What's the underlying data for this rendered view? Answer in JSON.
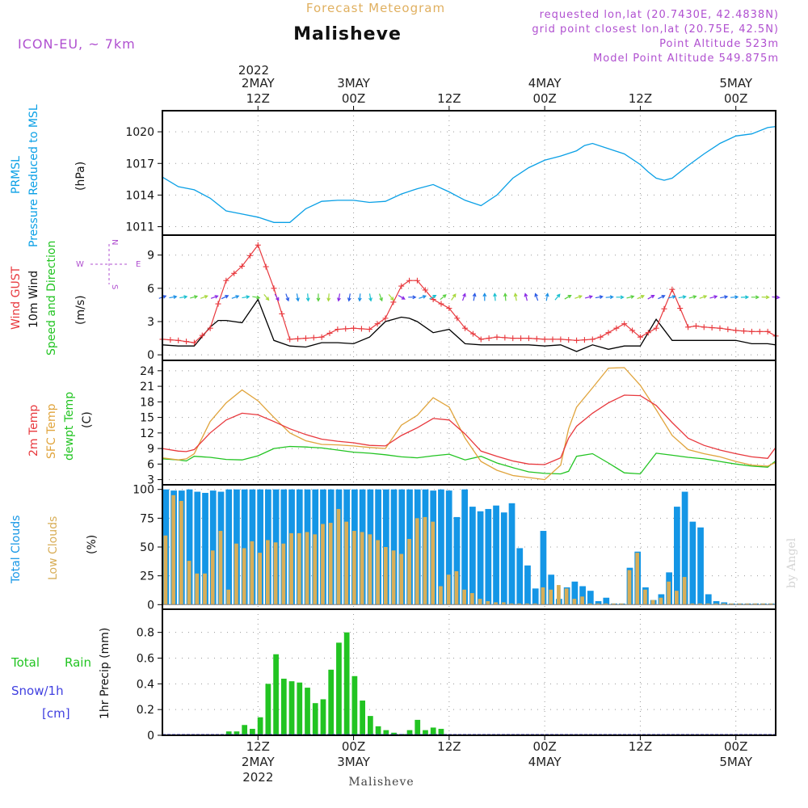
{
  "header": {
    "product": "Forecast Meteogram",
    "location": "Malisheve",
    "model": "ICON-EU, ~ 7km",
    "info_lines": [
      "requested lon,lat (20.7430E, 42.4838N)",
      "grid point closest lon,lat (20.75E, 42.5N)",
      "Point Altitude 523m",
      "Model Point Altitude 549.875m"
    ]
  },
  "footer": {
    "location": "Malisheve",
    "watermark": "by Angel"
  },
  "time_axis": {
    "top_year": "2022",
    "ticks": [
      {
        "hour": 12,
        "top": "2MAY 12Z",
        "bottom": "12Z 2MAY 2022"
      },
      {
        "hour": 24,
        "top": "3MAY 00Z",
        "bottom": "00Z 3MAY"
      },
      {
        "hour": 36,
        "top": "12Z",
        "bottom": "12Z"
      },
      {
        "hour": 48,
        "top": "4MAY 00Z",
        "bottom": "00Z 4MAY"
      },
      {
        "hour": 60,
        "top": "12Z",
        "bottom": "12Z"
      },
      {
        "hour": 72,
        "top": "5MAY 00Z",
        "bottom": "00Z 5MAY"
      }
    ]
  },
  "colors": {
    "pressure": "#0aa0e6",
    "gust": "#e8383d",
    "wind": "#000000",
    "temp2m": "#e8383d",
    "sfc": "#e0a43c",
    "dew": "#22c422",
    "total_cloud": "#1496e6",
    "low_cloud": "#d8ae58",
    "rain": "#22c422",
    "snow": "#4040e0",
    "purple": "#b050d0"
  },
  "panels": {
    "pressure": {
      "labels": [
        "PRMSL",
        "Pressure Reduced to MSL",
        "(hPa)"
      ]
    },
    "wind": {
      "labels": [
        "Wind GUST",
        "10m Wind",
        "Speed and Direction",
        "(m/s)"
      ],
      "compass": {
        "n": "N",
        "s": "S",
        "w": "W",
        "e": "E"
      }
    },
    "temp": {
      "labels": [
        "2m Temp",
        "SFC Temp",
        "dewpt Temp",
        "(C)"
      ]
    },
    "cloud": {
      "labels": [
        "Total Clouds",
        "Low Clouds",
        "(%)"
      ]
    },
    "precip": {
      "labels": [
        "Total",
        "Rain",
        "Snow/1h",
        "[cm]",
        "1hr Precip (mm)"
      ]
    }
  },
  "chart_data": [
    {
      "type": "line",
      "title": "PRMSL",
      "ylabel": "Pressure Reduced to MSL (hPa)",
      "ylim": [
        1010.2,
        1022.0
      ],
      "yticks": [
        1011,
        1014,
        1017,
        1020
      ],
      "x_unit": "hours from 2022-05-02 00Z",
      "x": [
        0,
        2,
        4,
        6,
        8,
        10,
        12,
        14,
        16,
        18,
        20,
        22,
        24,
        26,
        28,
        30,
        32,
        34,
        36,
        38,
        40,
        42,
        44,
        46,
        48,
        50,
        52,
        53,
        54,
        56,
        58,
        60,
        61,
        62,
        63,
        64,
        66,
        68,
        70,
        72,
        74,
        76,
        77
      ],
      "series": [
        {
          "name": "PRMSL",
          "values": [
            1015.7,
            1014.8,
            1014.5,
            1013.7,
            1012.5,
            1012.2,
            1011.9,
            1011.4,
            1011.4,
            1012.7,
            1013.4,
            1013.5,
            1013.5,
            1013.3,
            1013.4,
            1014.1,
            1014.6,
            1015.0,
            1014.3,
            1013.5,
            1013.0,
            1014.0,
            1015.6,
            1016.6,
            1017.3,
            1017.7,
            1018.2,
            1018.7,
            1018.9,
            1018.4,
            1017.9,
            1016.9,
            1016.2,
            1015.6,
            1015.4,
            1015.6,
            1016.8,
            1017.9,
            1018.9,
            1019.6,
            1019.8,
            1020.4,
            1020.5
          ]
        }
      ]
    },
    {
      "type": "line",
      "title": "Wind",
      "ylabel": "(m/s)",
      "ylim": [
        -0.5,
        10.8
      ],
      "yticks": [
        0,
        3,
        6,
        9
      ],
      "x": [
        0,
        2,
        4,
        6,
        7,
        8,
        10,
        12,
        14,
        16,
        18,
        20,
        22,
        24,
        26,
        28,
        30,
        31,
        32,
        34,
        36,
        38,
        40,
        42,
        44,
        46,
        48,
        50,
        52,
        54,
        55,
        56,
        58,
        60,
        62,
        64,
        66,
        67,
        68,
        70,
        72,
        74,
        76,
        77
      ],
      "series": [
        {
          "name": "Wind GUST",
          "values": [
            1.4,
            1.3,
            1.1,
            2.4,
            4.6,
            6.7,
            8.0,
            9.9,
            6.0,
            1.4,
            1.5,
            1.6,
            2.3,
            2.4,
            2.3,
            3.3,
            6.2,
            6.7,
            6.7,
            5.0,
            4.2,
            2.4,
            1.4,
            1.6,
            1.5,
            1.5,
            1.4,
            1.4,
            1.3,
            1.4,
            1.6,
            2.0,
            2.8,
            1.6,
            2.4,
            5.9,
            2.5,
            2.6,
            2.5,
            2.4,
            2.2,
            2.1,
            2.1,
            1.7
          ]
        },
        {
          "name": "10m Wind",
          "values": [
            0.9,
            0.8,
            0.8,
            2.5,
            3.1,
            3.1,
            2.9,
            5.0,
            1.3,
            0.8,
            0.7,
            1.1,
            1.1,
            1.0,
            1.6,
            3.0,
            3.4,
            3.3,
            3.0,
            2.0,
            2.3,
            1.0,
            0.9,
            0.9,
            0.9,
            0.9,
            0.8,
            0.9,
            0.3,
            0.9,
            0.7,
            0.5,
            0.8,
            0.8,
            3.2,
            1.3,
            1.3,
            1.3,
            1.3,
            1.3,
            1.3,
            1.0,
            1.0,
            0.9
          ]
        }
      ],
      "wind_barbs": {
        "level": 5.2,
        "dirs_deg": [
          250,
          260,
          260,
          255,
          250,
          250,
          245,
          250,
          260,
          280,
          320,
          330,
          340,
          350,
          355,
          0,
          5,
          10,
          10,
          5,
          350,
          340,
          320,
          300,
          270,
          250,
          240,
          230,
          215,
          200,
          190,
          180,
          175,
          175,
          170,
          165,
          160,
          190,
          220,
          240,
          250,
          255,
          260,
          265,
          270,
          255,
          245,
          240,
          245,
          255,
          260,
          255,
          250,
          255,
          260,
          265,
          268,
          270,
          272,
          275
        ]
      }
    },
    {
      "type": "line",
      "title": "Temperature",
      "ylabel": "(C)",
      "ylim": [
        2.0,
        26.0
      ],
      "yticks": [
        3,
        6,
        9,
        12,
        15,
        18,
        21,
        24
      ],
      "x": [
        0,
        2,
        3,
        4,
        6,
        8,
        10,
        12,
        14,
        16,
        18,
        20,
        22,
        24,
        26,
        28,
        30,
        32,
        34,
        36,
        38,
        40,
        42,
        44,
        46,
        48,
        50,
        51,
        52,
        54,
        56,
        58,
        60,
        62,
        64,
        66,
        68,
        70,
        72,
        74,
        76,
        77
      ],
      "series": [
        {
          "name": "2m Temp",
          "values": [
            9.0,
            8.5,
            8.4,
            8.8,
            12.0,
            14.5,
            15.8,
            15.5,
            14.2,
            12.8,
            11.7,
            10.8,
            10.4,
            10.1,
            9.6,
            9.5,
            11.5,
            13.0,
            14.8,
            14.5,
            11.8,
            8.5,
            7.5,
            6.6,
            6.0,
            5.9,
            7.2,
            11.0,
            13.3,
            15.8,
            17.8,
            19.3,
            19.2,
            17.3,
            14.0,
            11.0,
            9.6,
            8.7,
            8.0,
            7.4,
            7.1,
            9.2
          ]
        },
        {
          "name": "SFC Temp",
          "values": [
            7.2,
            6.8,
            7.0,
            8.0,
            14.2,
            17.8,
            20.3,
            18.2,
            15.0,
            12.0,
            10.5,
            9.8,
            9.7,
            9.5,
            9.2,
            9.0,
            13.5,
            15.4,
            18.8,
            17.0,
            11.0,
            6.5,
            4.8,
            3.8,
            3.4,
            3.0,
            5.8,
            12.8,
            17.0,
            20.7,
            24.5,
            24.6,
            21.2,
            16.5,
            11.5,
            8.8,
            8.0,
            7.4,
            6.5,
            5.8,
            5.6,
            6.3
          ]
        },
        {
          "name": "dewpt Temp",
          "values": [
            7.0,
            6.8,
            6.6,
            7.5,
            7.3,
            6.9,
            6.8,
            7.6,
            9.0,
            9.4,
            9.3,
            9.1,
            8.7,
            8.3,
            8.1,
            7.8,
            7.4,
            7.2,
            7.6,
            7.9,
            6.8,
            7.5,
            6.2,
            5.3,
            4.5,
            4.2,
            4.1,
            4.6,
            7.5,
            8.0,
            6.2,
            4.3,
            4.1,
            8.1,
            7.7,
            7.3,
            7.0,
            6.5,
            6.0,
            5.6,
            5.4,
            6.6
          ]
        }
      ]
    },
    {
      "type": "bar",
      "title": "Clouds",
      "ylabel": "(%)",
      "ylim": [
        -4,
        104
      ],
      "yticks": [
        0,
        25,
        50,
        75,
        100
      ],
      "x": "hourly 0..77",
      "series": [
        {
          "name": "Total Clouds",
          "values": [
            100,
            99,
            99,
            100,
            98,
            97,
            99,
            98,
            100,
            100,
            100,
            100,
            100,
            100,
            100,
            100,
            100,
            100,
            100,
            100,
            100,
            100,
            100,
            100,
            100,
            100,
            100,
            100,
            100,
            100,
            100,
            100,
            100,
            100,
            99,
            100,
            99,
            76,
            100,
            85,
            81,
            83,
            86,
            80,
            88,
            49,
            34,
            14,
            64,
            26,
            5,
            15,
            20,
            16,
            12,
            3,
            6,
            1,
            1,
            32,
            46,
            15,
            4,
            9,
            28,
            85,
            98,
            72,
            67,
            9,
            3,
            2,
            1,
            1,
            1,
            1,
            1,
            1
          ]
        },
        {
          "name": "Low Clouds",
          "values": [
            60,
            95,
            90,
            38,
            27,
            27,
            47,
            64,
            13,
            53,
            49,
            55,
            45,
            56,
            54,
            53,
            62,
            62,
            63,
            61,
            70,
            71,
            83,
            72,
            64,
            63,
            61,
            56,
            50,
            47,
            44,
            57,
            75,
            76,
            72,
            16,
            26,
            29,
            13,
            10,
            5,
            3,
            2,
            2,
            1,
            1,
            1,
            1,
            15,
            13,
            17,
            14,
            5,
            7,
            1,
            1,
            1,
            1,
            1,
            30,
            45,
            13,
            4,
            6,
            20,
            12,
            24,
            1,
            1,
            1,
            1,
            1,
            1,
            1,
            1,
            1,
            1,
            1
          ]
        }
      ]
    },
    {
      "type": "bar",
      "title": "1hr Precip",
      "ylabel": "1hr Precip (mm)",
      "ylim": [
        0,
        0.98
      ],
      "yticks": [
        0,
        0.2,
        0.4,
        0.6,
        0.8
      ],
      "x": "hourly 0..77",
      "series": [
        {
          "name": "Total Rain",
          "values": [
            0,
            0,
            0,
            0,
            0,
            0,
            0,
            0,
            0.03,
            0.03,
            0.08,
            0.05,
            0.14,
            0.4,
            0.63,
            0.44,
            0.42,
            0.41,
            0.37,
            0.25,
            0.28,
            0.51,
            0.72,
            0.8,
            0.46,
            0.27,
            0.15,
            0.07,
            0.04,
            0.02,
            0.01,
            0.04,
            0.12,
            0.04,
            0.06,
            0.05,
            0,
            0,
            0,
            0,
            0,
            0,
            0,
            0,
            0,
            0,
            0,
            0,
            0,
            0,
            0,
            0,
            0,
            0,
            0,
            0,
            0,
            0,
            0,
            0,
            0,
            0,
            0,
            0,
            0,
            0,
            0,
            0,
            0,
            0,
            0,
            0,
            0,
            0,
            0,
            0,
            0,
            0
          ]
        },
        {
          "name": "Snow/1h",
          "values": [
            0,
            0,
            0,
            0,
            0,
            0,
            0,
            0,
            0,
            0,
            0,
            0,
            0,
            0,
            0,
            0,
            0,
            0,
            0,
            0,
            0,
            0,
            0,
            0,
            0,
            0,
            0,
            0,
            0,
            0,
            0,
            0,
            0,
            0,
            0,
            0,
            0,
            0,
            0,
            0,
            0,
            0,
            0,
            0,
            0,
            0,
            0,
            0,
            0,
            0,
            0,
            0,
            0,
            0,
            0,
            0,
            0,
            0,
            0,
            0,
            0,
            0,
            0,
            0,
            0,
            0,
            0,
            0,
            0,
            0,
            0,
            0,
            0,
            0,
            0,
            0,
            0,
            0
          ]
        }
      ]
    }
  ]
}
